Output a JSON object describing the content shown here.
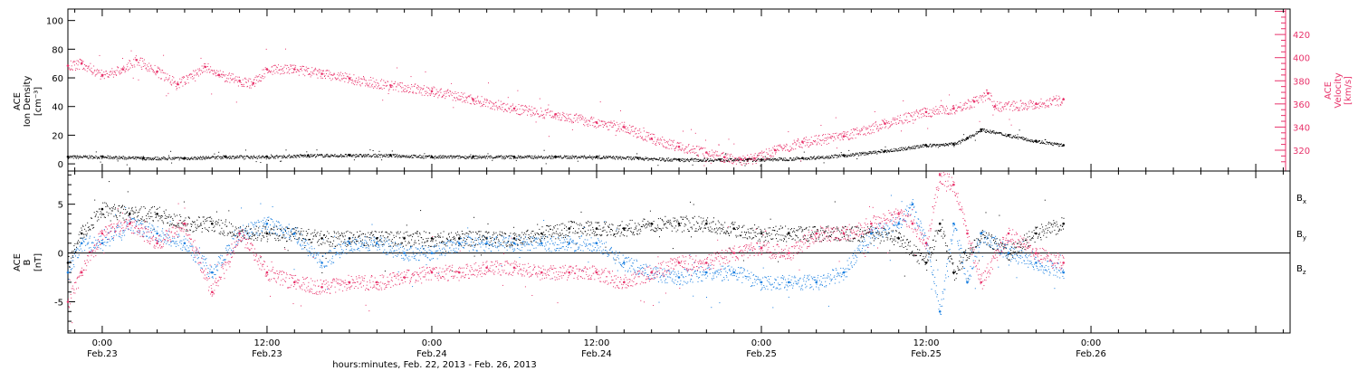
{
  "chart_data": {
    "type": "scatter",
    "time_axis": {
      "label": "hours:minutes, Feb. 22, 2013 - Feb. 26, 2013",
      "range_hours": [
        -2.5,
        86.5
      ],
      "ticks": [
        {
          "hour": 0,
          "time": "0:00",
          "date": "Feb.23"
        },
        {
          "hour": 12,
          "time": "12:00",
          "date": "Feb.23"
        },
        {
          "hour": 24,
          "time": "0:00",
          "date": "Feb.24"
        },
        {
          "hour": 36,
          "time": "12:00",
          "date": "Feb.24"
        },
        {
          "hour": 48,
          "time": "0:00",
          "date": "Feb.25"
        },
        {
          "hour": 60,
          "time": "12:00",
          "date": "Feb.25"
        },
        {
          "hour": 72,
          "time": "0:00",
          "date": "Feb.26"
        }
      ]
    },
    "panels": [
      {
        "id": "density-velocity",
        "left_axis": {
          "label_lines": [
            "ACE",
            "Ion Density",
            "[cm⁻³]"
          ],
          "ylim": [
            -5,
            108
          ],
          "ticks": [
            0,
            20,
            40,
            60,
            80,
            100
          ]
        },
        "right_axis": {
          "label_lines": [
            "ACE",
            "Velocity",
            "[km/s]"
          ],
          "ylim": [
            302,
            442
          ],
          "ticks": [
            320,
            340,
            360,
            380,
            400,
            420
          ],
          "color": "#e8336b"
        },
        "series": [
          {
            "color": "#000000",
            "axis": "left",
            "points": [
              [
                -2.5,
                5
              ],
              [
                0,
                5
              ],
              [
                3,
                4
              ],
              [
                6,
                4
              ],
              [
                9,
                5
              ],
              [
                12,
                5
              ],
              [
                15,
                6
              ],
              [
                18,
                6
              ],
              [
                21,
                6
              ],
              [
                24,
                5
              ],
              [
                27,
                5
              ],
              [
                30,
                5
              ],
              [
                33,
                5
              ],
              [
                36,
                5
              ],
              [
                39,
                4
              ],
              [
                42,
                3
              ],
              [
                45,
                3
              ],
              [
                47,
                3
              ],
              [
                48,
                3
              ],
              [
                51,
                4
              ],
              [
                54,
                6
              ],
              [
                57,
                9
              ],
              [
                60,
                13
              ],
              [
                62,
                14
              ],
              [
                63,
                18
              ],
              [
                64,
                24
              ],
              [
                66,
                20
              ],
              [
                68,
                16
              ],
              [
                70,
                13
              ]
            ]
          },
          {
            "color": "#e8336b",
            "axis": "right",
            "points": [
              [
                -2.5,
                393
              ],
              [
                -1.5,
                395
              ],
              [
                0,
                385
              ],
              [
                1.5,
                390
              ],
              [
                2.5,
                398
              ],
              [
                4,
                388
              ],
              [
                5.5,
                377
              ],
              [
                7.5,
                392
              ],
              [
                8.5,
                385
              ],
              [
                10,
                380
              ],
              [
                11,
                378
              ],
              [
                12,
                390
              ],
              [
                14,
                390
              ],
              [
                16,
                386
              ],
              [
                18,
                382
              ],
              [
                21,
                376
              ],
              [
                24,
                371
              ],
              [
                27,
                364
              ],
              [
                30,
                356
              ],
              [
                33,
                351
              ],
              [
                36,
                344
              ],
              [
                38,
                340
              ],
              [
                40,
                330
              ],
              [
                42,
                323
              ],
              [
                44,
                318
              ],
              [
                45.3,
                314
              ],
              [
                46.5,
                312
              ],
              [
                47.5,
                313
              ],
              [
                49,
                320
              ],
              [
                51,
                327
              ],
              [
                54,
                332
              ],
              [
                57,
                343
              ],
              [
                60,
                353
              ],
              [
                62,
                356
              ],
              [
                63.5,
                362
              ],
              [
                64.5,
                369
              ],
              [
                65,
                358
              ],
              [
                68,
                360
              ],
              [
                70,
                364
              ]
            ]
          }
        ]
      },
      {
        "id": "magnetic-field",
        "left_axis": {
          "label_lines": [
            "ACE",
            "B",
            "[nT]"
          ],
          "ylim": [
            -8.2,
            8.4
          ],
          "ticks": [
            -5,
            0,
            5
          ]
        },
        "zero_line": true,
        "series": [
          {
            "name": "Bx",
            "color": "#000000",
            "points": [
              [
                -2.5,
                -1
              ],
              [
                -1.5,
                2
              ],
              [
                0,
                4.5
              ],
              [
                2,
                4
              ],
              [
                4,
                4
              ],
              [
                6,
                3
              ],
              [
                8,
                3
              ],
              [
                10,
                2
              ],
              [
                12,
                2
              ],
              [
                14,
                2
              ],
              [
                16,
                1.5
              ],
              [
                18,
                1.5
              ],
              [
                20,
                1.5
              ],
              [
                22,
                1.5
              ],
              [
                24,
                1.5
              ],
              [
                26,
                1.5
              ],
              [
                28,
                1.5
              ],
              [
                30,
                1.5
              ],
              [
                32,
                2
              ],
              [
                34,
                2.5
              ],
              [
                36,
                2.5
              ],
              [
                38,
                2.5
              ],
              [
                40,
                3
              ],
              [
                42,
                3
              ],
              [
                44,
                3
              ],
              [
                46,
                2.5
              ],
              [
                48,
                2
              ],
              [
                50,
                2
              ],
              [
                52,
                2
              ],
              [
                54,
                2
              ],
              [
                56,
                2
              ],
              [
                58,
                1.5
              ],
              [
                60,
                -1
              ],
              [
                61,
                3
              ],
              [
                62,
                -2
              ],
              [
                64,
                2
              ],
              [
                66,
                0
              ],
              [
                68,
                2
              ],
              [
                70,
                3
              ]
            ]
          },
          {
            "name": "By",
            "color": "#1a7fe0",
            "points": [
              [
                -2.5,
                -2
              ],
              [
                -1.5,
                1
              ],
              [
                0,
                1
              ],
              [
                2,
                3
              ],
              [
                4,
                2
              ],
              [
                6,
                1
              ],
              [
                8,
                -2
              ],
              [
                10,
                2
              ],
              [
                12,
                3
              ],
              [
                14,
                2
              ],
              [
                16,
                -1
              ],
              [
                18,
                1
              ],
              [
                20,
                1
              ],
              [
                22,
                0
              ],
              [
                24,
                0
              ],
              [
                26,
                1
              ],
              [
                28,
                1
              ],
              [
                30,
                1
              ],
              [
                32,
                1
              ],
              [
                34,
                1
              ],
              [
                36,
                1
              ],
              [
                38,
                -1
              ],
              [
                40,
                -2
              ],
              [
                42,
                -2.5
              ],
              [
                44,
                -2
              ],
              [
                46,
                -2
              ],
              [
                48,
                -3
              ],
              [
                50,
                -3
              ],
              [
                52,
                -3
              ],
              [
                54,
                -2
              ],
              [
                56,
                2
              ],
              [
                58,
                3
              ],
              [
                59,
                5
              ],
              [
                60,
                1
              ],
              [
                61,
                -6
              ],
              [
                62,
                3
              ],
              [
                63,
                -3
              ],
              [
                64,
                2
              ],
              [
                66,
                0
              ],
              [
                68,
                -1
              ],
              [
                70,
                -2
              ]
            ]
          },
          {
            "name": "Bz",
            "color": "#e8336b",
            "points": [
              [
                -2.5,
                -5
              ],
              [
                -1.5,
                -2
              ],
              [
                0,
                2
              ],
              [
                2,
                3
              ],
              [
                4,
                1
              ],
              [
                6,
                3
              ],
              [
                8,
                -4
              ],
              [
                10,
                2
              ],
              [
                12,
                -2
              ],
              [
                14,
                -3
              ],
              [
                16,
                -3.5
              ],
              [
                18,
                -3
              ],
              [
                20,
                -3
              ],
              [
                22,
                -2.5
              ],
              [
                24,
                -2
              ],
              [
                26,
                -2
              ],
              [
                28,
                -1.5
              ],
              [
                30,
                -1.5
              ],
              [
                32,
                -2
              ],
              [
                34,
                -2
              ],
              [
                36,
                -2
              ],
              [
                38,
                -3
              ],
              [
                40,
                -2
              ],
              [
                42,
                -1
              ],
              [
                44,
                -1
              ],
              [
                46,
                0
              ],
              [
                48,
                0.5
              ],
              [
                50,
                0
              ],
              [
                52,
                2
              ],
              [
                54,
                2
              ],
              [
                56,
                3
              ],
              [
                58,
                4
              ],
              [
                59,
                3
              ],
              [
                60,
                1
              ],
              [
                61,
                8
              ],
              [
                62,
                7
              ],
              [
                63,
                2
              ],
              [
                64,
                -3
              ],
              [
                66,
                2
              ],
              [
                68,
                0
              ],
              [
                70,
                -1
              ]
            ]
          }
        ],
        "legend": {
          "placement": "right",
          "entries": [
            {
              "main": "B",
              "sub": "x",
              "color": "#000000"
            },
            {
              "main": "B",
              "sub": "y",
              "color": "#1a7fe0"
            },
            {
              "main": "B",
              "sub": "z",
              "color": "#e8336b"
            }
          ]
        }
      }
    ]
  }
}
